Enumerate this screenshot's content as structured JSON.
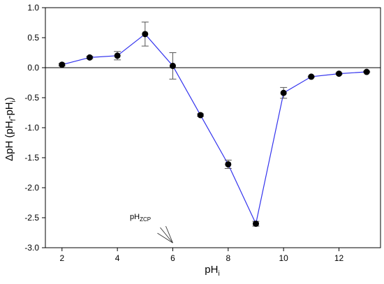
{
  "chart_data": {
    "type": "line",
    "xlabel_main": "pH",
    "xlabel_sub": "i",
    "ylabel": "ΔpH (pHf-pHi)",
    "ylabel_parts": [
      "ΔpH (pH",
      "f",
      "-pH",
      "i",
      ")"
    ],
    "xlim": [
      1.4,
      13.5
    ],
    "ylim": [
      -3.0,
      1.0
    ],
    "xticks": [
      2,
      4,
      6,
      8,
      10,
      12
    ],
    "yticks": [
      -3.0,
      -2.5,
      -2.0,
      -1.5,
      -1.0,
      -0.5,
      0.0,
      0.5,
      1.0
    ],
    "ytick_labels": [
      "-3.0",
      "-2.5",
      "-2.0",
      "-1.5",
      "-1.0",
      "-0.5",
      "0.0",
      "0.5",
      "1.0"
    ],
    "xtick_labels": [
      "2",
      "4",
      "6",
      "8",
      "10",
      "12"
    ],
    "reference_line_y": 0,
    "series": [
      {
        "x": [
          2,
          3,
          4,
          5,
          6,
          7,
          8,
          9,
          10,
          11,
          12,
          13
        ],
        "y": [
          0.05,
          0.17,
          0.2,
          0.56,
          0.03,
          -0.79,
          -1.61,
          -2.6,
          -0.42,
          -0.15,
          -0.1,
          -0.07
        ],
        "err": [
          0.02,
          0.02,
          0.07,
          0.2,
          0.22,
          0.02,
          0.07,
          0.04,
          0.09,
          0.01,
          0.01,
          0.01
        ],
        "color": "#3333ee",
        "marker_color": "#000000"
      }
    ],
    "annotation": {
      "text_main": "pH",
      "text_sub": "ZCP",
      "target_x": 6.0,
      "target_y": -2.92
    }
  }
}
